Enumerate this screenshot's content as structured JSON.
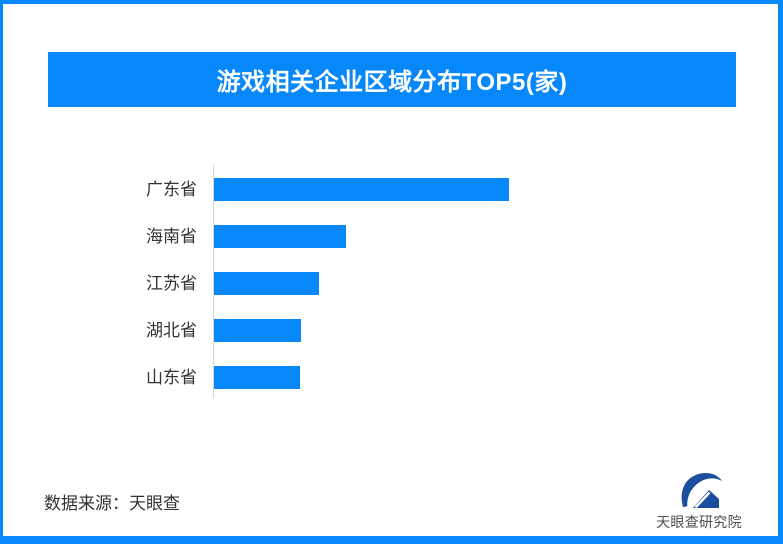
{
  "page": {
    "background": "#ffffff",
    "frame_color": "#0788fa"
  },
  "header": {
    "title": "游戏相关企业区域分布TOP5(家)",
    "bg_color": "#0788fa",
    "text_color": "#ffffff"
  },
  "chart_data": {
    "type": "bar",
    "orientation": "horizontal",
    "title": "游戏相关企业区域分布TOP5(家)",
    "categories": [
      "广东省",
      "海南省",
      "江苏省",
      "湖北省",
      "山东省"
    ],
    "values_relative": [
      295,
      132,
      105,
      87,
      86
    ],
    "unit_from_title": "家",
    "value_axis_labels_visible": false,
    "grid": false,
    "legend": false,
    "bar_color": "#0788fa",
    "axis_line_color": "#d8d8d8",
    "label_color": "#333333"
  },
  "footer": {
    "source_label": "数据来源：天眼查",
    "logo_text": "天眼查研究院",
    "logo_color": "#1d4e9e"
  }
}
